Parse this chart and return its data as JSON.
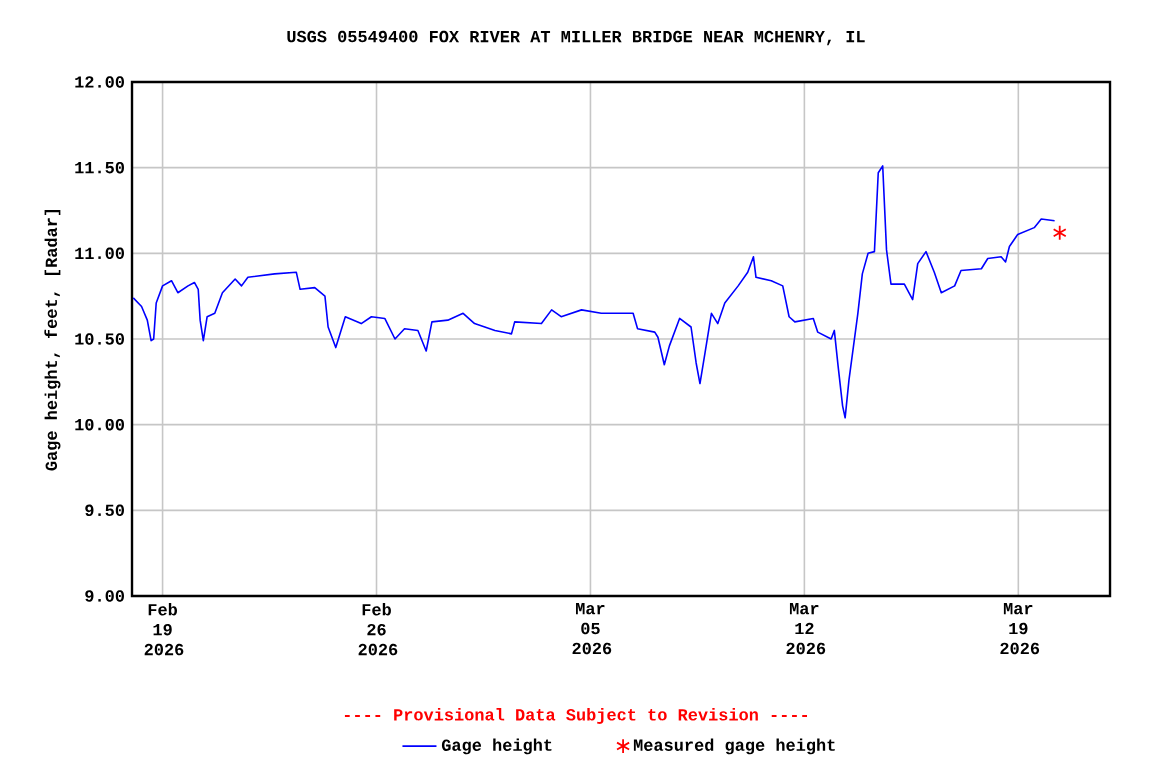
{
  "chart_data": {
    "type": "line",
    "title": "USGS 05549400 FOX RIVER AT MILLER BRIDGE NEAR MCHENRY, IL",
    "ylabel": "Gage height, feet, [Radar]",
    "annotations": [
      "---- Provisional Data Subject to Revision ----"
    ],
    "xlim": [
      "2026-02-18T00:00",
      "2026-03-22T00:00"
    ],
    "xticks": [
      {
        "value": "2026-02-19",
        "label": "Feb 19 2026"
      },
      {
        "value": "2026-02-26",
        "label": "Feb 26 2026"
      },
      {
        "value": "2026-03-05",
        "label": "Mar 05 2026"
      },
      {
        "value": "2026-03-12",
        "label": "Mar 12 2026"
      },
      {
        "value": "2026-03-19",
        "label": "Mar 19 2026"
      }
    ],
    "ylim": [
      9,
      12
    ],
    "yticks": [
      {
        "value": 9,
        "label": "9.00"
      },
      {
        "value": 9.5,
        "label": "9.50"
      },
      {
        "value": 10,
        "label": "10.00"
      },
      {
        "value": 10.5,
        "label": "10.50"
      },
      {
        "value": 11,
        "label": "11.00"
      },
      {
        "value": 11.5,
        "label": "11.50"
      },
      {
        "value": 12,
        "label": "12.00"
      }
    ],
    "grid": true,
    "legend": "bottom",
    "series": [
      {
        "name": "Gage height",
        "type": "line",
        "marker": "none",
        "color": "#0000ff",
        "x": [
          "2026-02-18T01:00",
          "2026-02-18T07:30",
          "2026-02-18T12:00",
          "2026-02-18T15:00",
          "2026-02-18T17:00",
          "2026-02-18T19:00",
          "2026-02-19T00:00",
          "2026-02-19T07:00",
          "2026-02-19T12:00",
          "2026-02-19T20:00",
          "2026-02-20T01:00",
          "2026-02-20T04:00",
          "2026-02-20T05:30",
          "2026-02-20T08:00",
          "2026-02-20T11:00",
          "2026-02-20T17:00",
          "2026-02-20T23:00",
          "2026-02-21T09:00",
          "2026-02-21T14:00",
          "2026-02-21T19:00",
          "2026-02-22T16:00",
          "2026-02-23T09:00",
          "2026-02-23T12:00",
          "2026-02-23T23:30",
          "2026-02-24T07:30",
          "2026-02-24T10:00",
          "2026-02-24T16:00",
          "2026-02-24T23:30",
          "2026-02-25T12:00",
          "2026-02-25T20:00",
          "2026-02-26T06:30",
          "2026-02-26T14:30",
          "2026-02-26T22:00",
          "2026-02-27T08:30",
          "2026-02-27T15:00",
          "2026-02-27T19:30",
          "2026-02-28T08:00",
          "2026-02-28T20:00",
          "2026-03-01T05:00",
          "2026-03-01T21:00",
          "2026-03-02T10:00",
          "2026-03-02T12:30",
          "2026-03-03T09:30",
          "2026-03-03T17:30",
          "2026-03-04T01:00",
          "2026-03-04T17:00",
          "2026-03-05T08:30",
          "2026-03-06T09:30",
          "2026-03-06T13:00",
          "2026-03-07T02:30",
          "2026-03-07T05:00",
          "2026-03-07T10:00",
          "2026-03-07T14:00",
          "2026-03-07T22:00",
          "2026-03-08T07:00",
          "2026-03-08T11:00",
          "2026-03-08T14:00",
          "2026-03-08T18:00",
          "2026-03-08T23:00",
          "2026-03-09T04:00",
          "2026-03-09T09:30",
          "2026-03-09T20:00",
          "2026-03-10T03:30",
          "2026-03-10T08:00",
          "2026-03-10T10:00",
          "2026-03-10T22:00",
          "2026-03-11T07:00",
          "2026-03-11T12:00",
          "2026-03-11T16:30",
          "2026-03-12T07:00",
          "2026-03-12T10:30",
          "2026-03-12T21:00",
          "2026-03-12T23:30",
          "2026-03-13T02:30",
          "2026-03-13T06:00",
          "2026-03-13T08:00",
          "2026-03-13T11:00",
          "2026-03-13T18:00",
          "2026-03-13T21:30",
          "2026-03-14T02:00",
          "2026-03-14T07:00",
          "2026-03-14T10:00",
          "2026-03-14T13:30",
          "2026-03-14T16:30",
          "2026-03-14T20:00",
          "2026-03-15T06:30",
          "2026-03-15T13:00",
          "2026-03-15T17:00",
          "2026-03-15T23:30",
          "2026-03-16T06:00",
          "2026-03-16T11:30",
          "2026-03-16T22:00",
          "2026-03-17T03:00",
          "2026-03-17T19:00",
          "2026-03-18T00:00",
          "2026-03-18T10:30",
          "2026-03-18T14:00",
          "2026-03-18T17:00",
          "2026-03-18T23:30",
          "2026-03-19T12:30",
          "2026-03-19T18:00",
          "2026-03-20T04:30"
        ],
        "values": [
          10.74,
          10.69,
          10.61,
          10.49,
          10.5,
          10.71,
          10.81,
          10.84,
          10.77,
          10.81,
          10.83,
          10.79,
          10.61,
          10.49,
          10.63,
          10.65,
          10.77,
          10.85,
          10.81,
          10.86,
          10.88,
          10.89,
          10.79,
          10.8,
          10.75,
          10.57,
          10.45,
          10.63,
          10.59,
          10.63,
          10.62,
          10.5,
          10.56,
          10.55,
          10.43,
          10.6,
          10.61,
          10.65,
          10.59,
          10.55,
          10.53,
          10.6,
          10.59,
          10.67,
          10.63,
          10.67,
          10.65,
          10.65,
          10.56,
          10.54,
          10.51,
          10.35,
          10.46,
          10.62,
          10.57,
          10.36,
          10.24,
          10.42,
          10.65,
          10.59,
          10.71,
          10.81,
          10.89,
          10.98,
          10.86,
          10.84,
          10.81,
          10.63,
          10.6,
          10.62,
          10.54,
          10.5,
          10.55,
          10.34,
          10.11,
          10.04,
          10.26,
          10.65,
          10.88,
          11.0,
          11.01,
          11.47,
          11.51,
          11.02,
          10.82,
          10.82,
          10.73,
          10.94,
          11.01,
          10.89,
          10.77,
          10.81,
          10.9,
          10.91,
          10.97,
          10.98,
          10.95,
          11.04,
          11.11,
          11.15,
          11.2,
          11.19
        ]
      },
      {
        "name": "Measured gage height",
        "type": "scatter",
        "marker": "cross",
        "color": "#ff0000",
        "x": [
          "2026-03-20T08:30"
        ],
        "values": [
          11.12
        ]
      }
    ]
  }
}
